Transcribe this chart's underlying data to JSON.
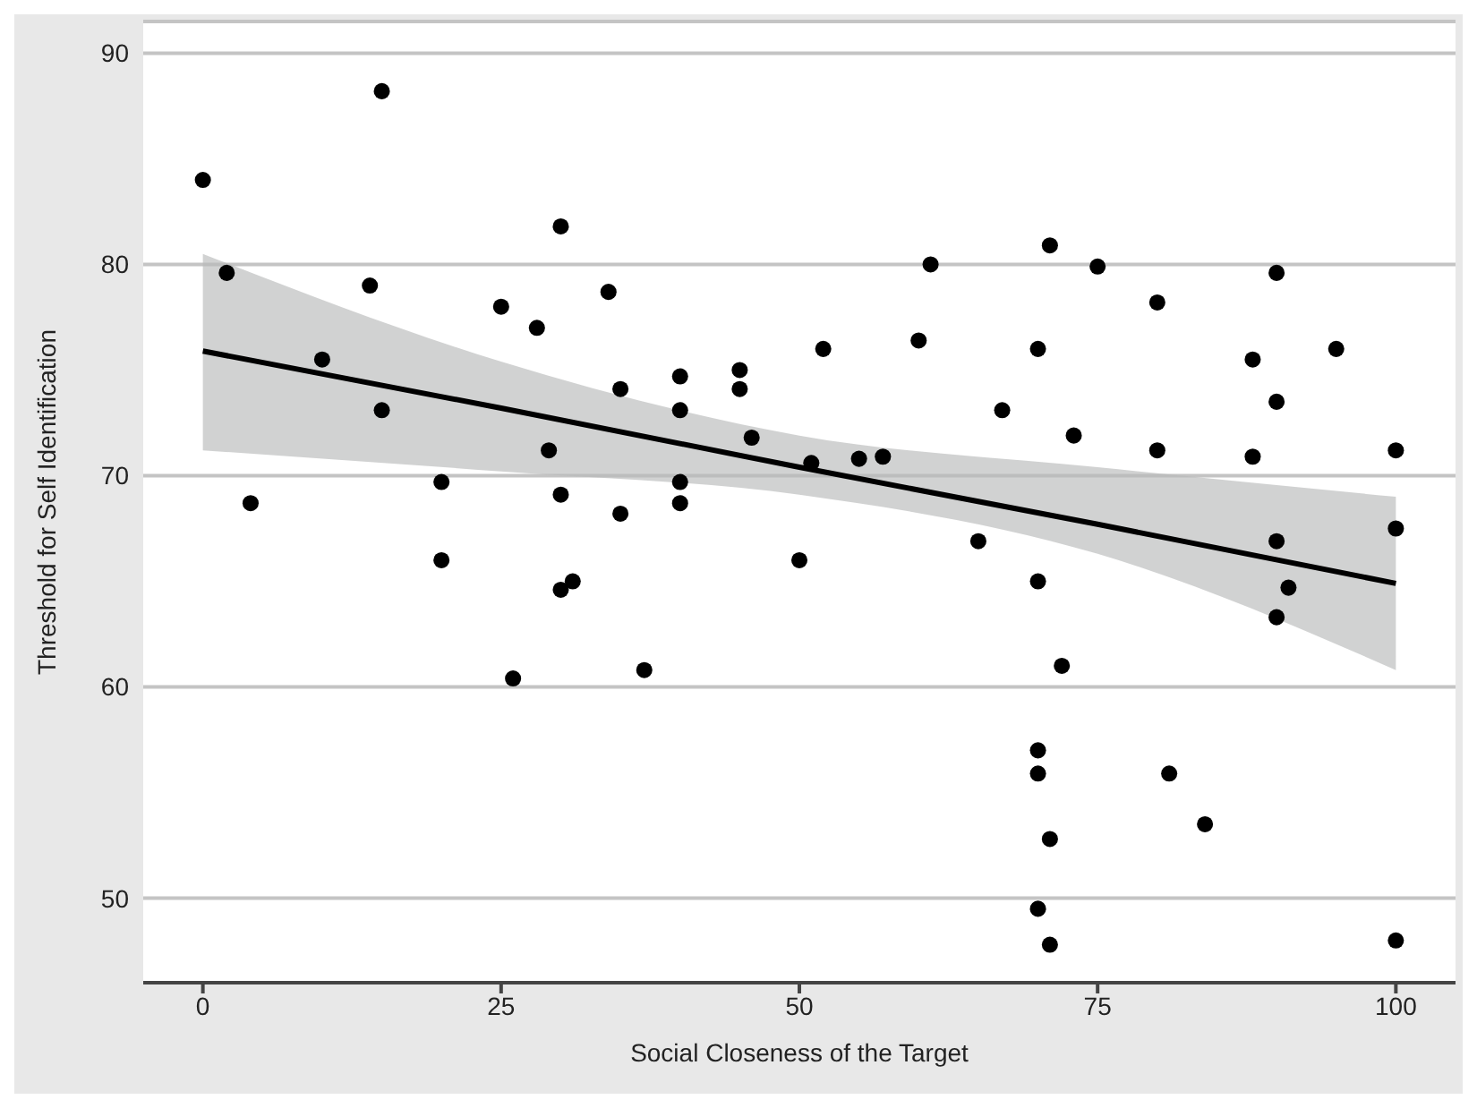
{
  "chart_data": {
    "type": "scatter",
    "xlabel": "Social Closeness of the Target",
    "ylabel": "Threshold for Self Identification",
    "xlim": [
      -5,
      105
    ],
    "xticks": [
      0,
      25,
      50,
      75,
      100
    ],
    "ylim": [
      46,
      91.5
    ],
    "yticks": [
      50,
      60,
      70,
      80,
      90
    ],
    "grid": "y",
    "series": [
      {
        "color": "#000000",
        "marker": "circle",
        "x": [
          0,
          2,
          4,
          10,
          14,
          15,
          15,
          20,
          20,
          25,
          26,
          28,
          29,
          30,
          30,
          30,
          31,
          34,
          35,
          35,
          37,
          40,
          40,
          40,
          40,
          45,
          45,
          46,
          50,
          51,
          52,
          55,
          57,
          60,
          61,
          65,
          67,
          70,
          70,
          70,
          70,
          70,
          71,
          71,
          71,
          72,
          73,
          75,
          80,
          80,
          81,
          84,
          88,
          88,
          90,
          90,
          90,
          90,
          91,
          95,
          100,
          100,
          100
        ],
        "values": [
          84,
          79.6,
          68.7,
          75.5,
          79,
          88.2,
          73.1,
          69.7,
          66,
          78,
          60.4,
          77,
          71.2,
          81.8,
          69.1,
          64.6,
          65,
          78.7,
          74.1,
          68.2,
          60.8,
          74.7,
          73.1,
          69.7,
          68.7,
          75,
          74.1,
          71.8,
          66,
          70.6,
          76,
          70.8,
          70.9,
          76.4,
          80,
          66.9,
          73.1,
          76,
          65,
          57,
          55.9,
          49.5,
          80.9,
          52.8,
          47.8,
          61,
          71.9,
          79.9,
          78.2,
          71.2,
          55.9,
          53.5,
          75.5,
          70.9,
          79.6,
          73.5,
          66.9,
          63.3,
          64.7,
          76,
          71.2,
          67.5,
          48
        ]
      },
      {
        "type": "line",
        "color": "#000000",
        "marker": "none",
        "x": [
          0,
          25,
          50,
          75,
          100
        ],
        "values": [
          75.9,
          73.2,
          70.4,
          67.7,
          64.9
        ],
        "lower": [
          71.2,
          70.2,
          69.1,
          66.3,
          60.8
        ],
        "upper": [
          80.5,
          75.4,
          71.9,
          70.4,
          69
        ]
      }
    ]
  }
}
